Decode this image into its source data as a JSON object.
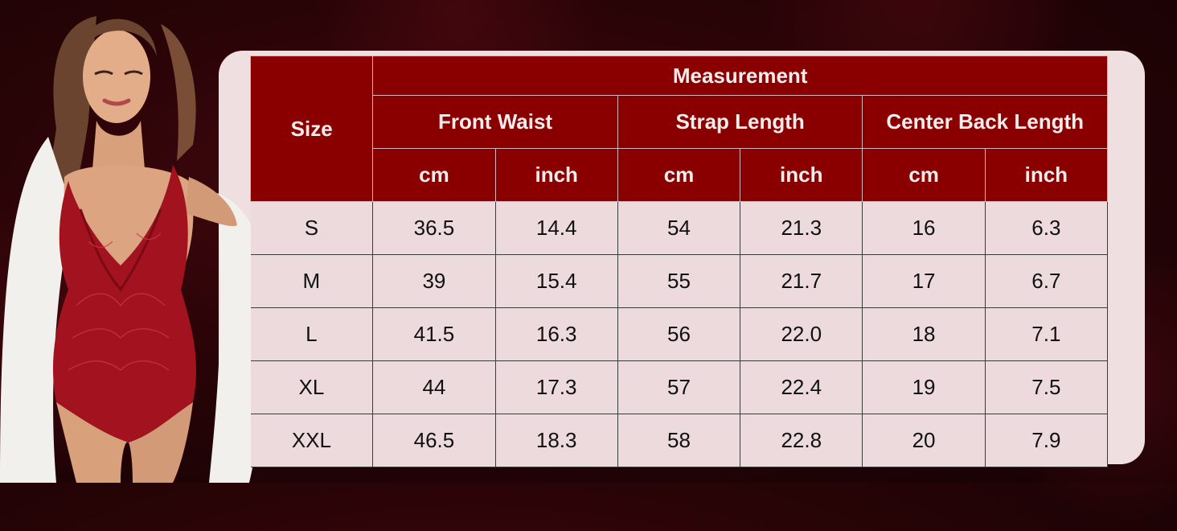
{
  "table": {
    "size_label": "Size",
    "measurement_label": "Measurement",
    "groups": [
      "Front Waist",
      "Strap Length",
      "Center Back Length"
    ],
    "units": [
      "cm",
      "inch",
      "cm",
      "inch",
      "cm",
      "inch"
    ],
    "rows": [
      [
        "S",
        "36.5",
        "14.4",
        "54",
        "21.3",
        "16",
        "6.3"
      ],
      [
        "M",
        "39",
        "15.4",
        "55",
        "21.7",
        "17",
        "6.7"
      ],
      [
        "L",
        "41.5",
        "16.3",
        "56",
        "22.0",
        "18",
        "7.1"
      ],
      [
        "XL",
        "44",
        "17.3",
        "57",
        "22.4",
        "19",
        "7.5"
      ],
      [
        "XXL",
        "46.5",
        "18.3",
        "58",
        "22.8",
        "20",
        "7.9"
      ]
    ]
  },
  "colors": {
    "header_red": "#8a0000",
    "panel_pink": "#f0dfe1",
    "background_dark_red": "#2a0407"
  }
}
